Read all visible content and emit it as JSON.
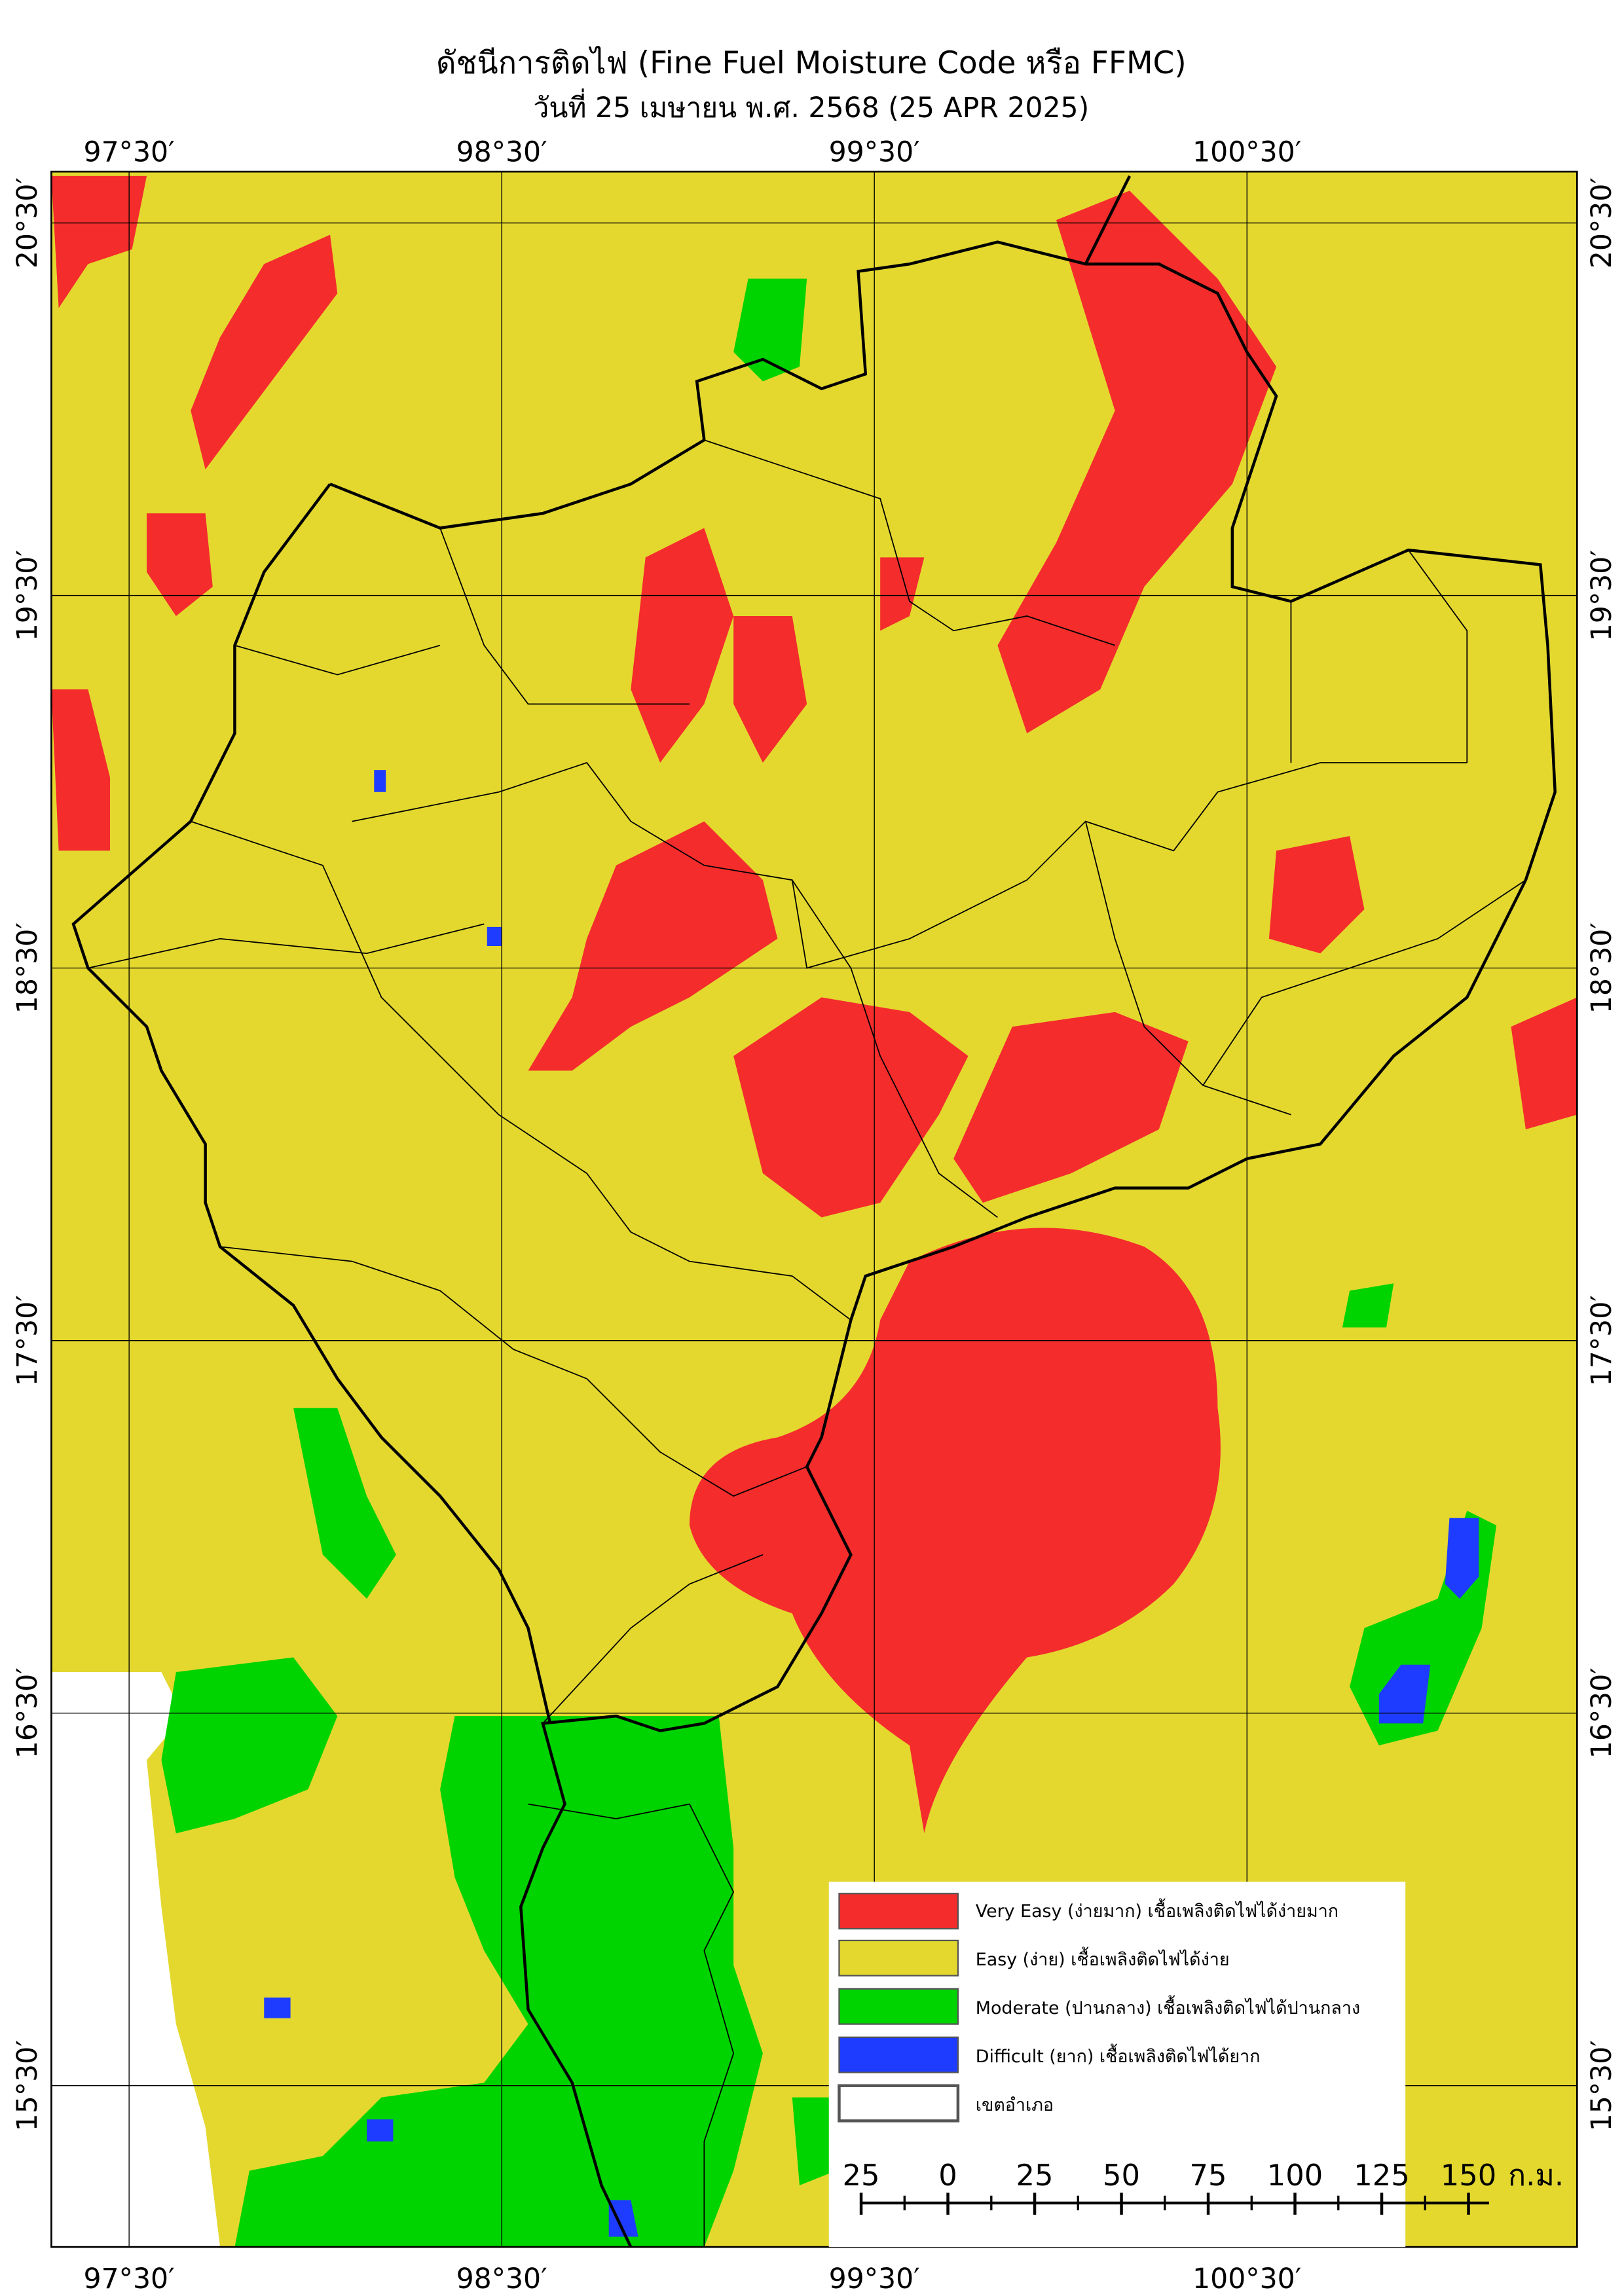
{
  "header": {
    "title": "ดัชนีการติดไฟ (Fine Fuel Moisture Code หรือ FFMC)",
    "subtitle": "วันที่ 25 เมษายน พ.ศ. 2568 (25 APR 2025)"
  },
  "map": {
    "longitudes": [
      "97°30′",
      "98°30′",
      "99°30′",
      "100°30′"
    ],
    "latitudes": [
      "20°30′",
      "19°30′",
      "18°30′",
      "17°30′",
      "16°30′",
      "15°30′"
    ]
  },
  "legend": {
    "items": [
      "Very Easy (ง่ายมาก) เชื้อเพลิงติดไฟได้ง่ายมาก",
      "Easy (ง่าย) เชื้อเพลิงติดไฟได้ง่าย",
      "Moderate (ปานกลาง) เชื้อเพลิงติดไฟได้ปานกลาง",
      "Difficult (ยาก) เชื้อเพลิงติดไฟได้ยาก",
      "เขตอำเภอ"
    ]
  },
  "scale_bar": {
    "labels": [
      "25",
      "0",
      "25",
      "50",
      "75",
      "100",
      "125",
      "150"
    ],
    "unit": "ก.ม."
  }
}
